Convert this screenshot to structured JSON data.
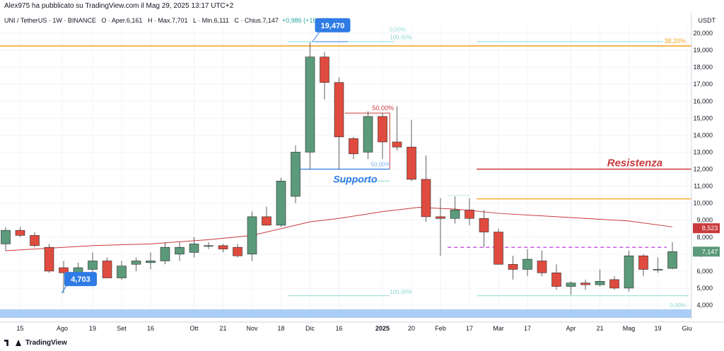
{
  "header": {
    "published_by": "Alex975 ha pubblicato su TradingView.com il Mag 29, 2025 13:17 UTC+2"
  },
  "legend": {
    "symbol": "UNI / TetherUS · 1W · BINANCE",
    "open": "O · Aper.6,161",
    "high": "H · Max.7,701",
    "low": "L · Min.6,111",
    "close": "C · Chius.7,147",
    "change": "+0,986 (+16,00%)"
  },
  "footer": {
    "brand": "TradingView"
  },
  "colors": {
    "up": "#5b9a7a",
    "down": "#e04b3f",
    "ma": "#c9393c",
    "resistance": "#c9393c",
    "fib_orange": "#f5a623",
    "support": "#2f7be5",
    "dashed": "#c44ae0",
    "fib_teal": "#8fd9d3",
    "blue_band": "#9cc4f5"
  },
  "chart_data": {
    "type": "candlestick",
    "y_axis_label": "USDT",
    "ylim": [
      3.3,
      21.0
    ],
    "y_ticks": [
      "4,000",
      "5,000",
      "6,000",
      "7,000",
      "8,000",
      "9,000",
      "10,000",
      "11,000",
      "12,000",
      "13,000",
      "14,000",
      "15,000",
      "16,000",
      "17,000",
      "18,000",
      "19,000",
      "20,000"
    ],
    "y_tick_values": [
      4,
      5,
      6,
      7,
      8,
      9,
      10,
      11,
      12,
      13,
      14,
      15,
      16,
      17,
      18,
      19,
      20
    ],
    "x_ticks": [
      {
        "label": "15",
        "i": 1
      },
      {
        "label": "Ago",
        "i": 3.9
      },
      {
        "label": "19",
        "i": 6
      },
      {
        "label": "Set",
        "i": 8
      },
      {
        "label": "16",
        "i": 10
      },
      {
        "label": "Ott",
        "i": 13
      },
      {
        "label": "21",
        "i": 15
      },
      {
        "label": "Nov",
        "i": 17
      },
      {
        "label": "18",
        "i": 19
      },
      {
        "label": "Dic",
        "i": 21
      },
      {
        "label": "16",
        "i": 23
      },
      {
        "label": "2025",
        "i": 26
      },
      {
        "label": "20",
        "i": 28
      },
      {
        "label": "Feb",
        "i": 30
      },
      {
        "label": "17",
        "i": 32
      },
      {
        "label": "Mar",
        "i": 34
      },
      {
        "label": "17",
        "i": 36
      },
      {
        "label": "Apr",
        "i": 39
      },
      {
        "label": "21",
        "i": 41
      },
      {
        "label": "Mag",
        "i": 43
      },
      {
        "label": "19",
        "i": 45
      },
      {
        "label": "Giu",
        "i": 47
      }
    ],
    "candles": [
      {
        "o": 7.6,
        "h": 8.6,
        "l": 7.2,
        "c": 8.4
      },
      {
        "o": 8.4,
        "h": 8.6,
        "l": 8.0,
        "c": 8.1
      },
      {
        "o": 8.1,
        "h": 8.3,
        "l": 7.4,
        "c": 7.5
      },
      {
        "o": 7.4,
        "h": 7.6,
        "l": 5.9,
        "c": 6.0
      },
      {
        "o": 6.2,
        "h": 6.6,
        "l": 4.7,
        "c": 5.9
      },
      {
        "o": 5.9,
        "h": 6.5,
        "l": 5.6,
        "c": 6.2
      },
      {
        "o": 6.1,
        "h": 7.1,
        "l": 5.8,
        "c": 6.6
      },
      {
        "o": 6.6,
        "h": 6.8,
        "l": 5.6,
        "c": 5.6
      },
      {
        "o": 5.6,
        "h": 6.6,
        "l": 5.5,
        "c": 6.3
      },
      {
        "o": 6.4,
        "h": 6.8,
        "l": 6.0,
        "c": 6.6
      },
      {
        "o": 6.5,
        "h": 7.1,
        "l": 6.1,
        "c": 6.6
      },
      {
        "o": 6.6,
        "h": 7.7,
        "l": 6.4,
        "c": 7.4
      },
      {
        "o": 7.0,
        "h": 7.7,
        "l": 6.6,
        "c": 7.4
      },
      {
        "o": 7.1,
        "h": 8.0,
        "l": 6.8,
        "c": 7.6
      },
      {
        "o": 7.5,
        "h": 7.7,
        "l": 7.3,
        "c": 7.5
      },
      {
        "o": 7.5,
        "h": 7.6,
        "l": 7.1,
        "c": 7.3
      },
      {
        "o": 7.4,
        "h": 7.6,
        "l": 6.8,
        "c": 6.9
      },
      {
        "o": 7.0,
        "h": 9.5,
        "l": 6.6,
        "c": 9.2
      },
      {
        "o": 9.2,
        "h": 9.8,
        "l": 8.7,
        "c": 8.7
      },
      {
        "o": 8.7,
        "h": 11.5,
        "l": 8.6,
        "c": 11.3
      },
      {
        "o": 10.4,
        "h": 13.4,
        "l": 10.0,
        "c": 13.0
      },
      {
        "o": 13.0,
        "h": 19.47,
        "l": 12.0,
        "c": 18.6
      },
      {
        "o": 18.6,
        "h": 18.9,
        "l": 16.1,
        "c": 17.1
      },
      {
        "o": 17.1,
        "h": 17.4,
        "l": 12.0,
        "c": 13.9
      },
      {
        "o": 13.8,
        "h": 13.9,
        "l": 12.6,
        "c": 12.9
      },
      {
        "o": 13.0,
        "h": 15.4,
        "l": 12.6,
        "c": 15.1
      },
      {
        "o": 15.1,
        "h": 15.3,
        "l": 12.6,
        "c": 13.6
      },
      {
        "o": 13.6,
        "h": 15.7,
        "l": 13.1,
        "c": 13.3
      },
      {
        "o": 13.3,
        "h": 14.9,
        "l": 11.3,
        "c": 11.4
      },
      {
        "o": 11.4,
        "h": 12.8,
        "l": 8.9,
        "c": 9.2
      },
      {
        "o": 9.2,
        "h": 10.3,
        "l": 6.9,
        "c": 9.1
      },
      {
        "o": 9.1,
        "h": 10.4,
        "l": 8.8,
        "c": 9.6
      },
      {
        "o": 9.6,
        "h": 10.3,
        "l": 8.7,
        "c": 9.1
      },
      {
        "o": 9.1,
        "h": 9.6,
        "l": 7.4,
        "c": 8.3
      },
      {
        "o": 8.3,
        "h": 8.5,
        "l": 6.4,
        "c": 6.4
      },
      {
        "o": 6.4,
        "h": 6.9,
        "l": 5.5,
        "c": 6.1
      },
      {
        "o": 6.1,
        "h": 7.3,
        "l": 5.7,
        "c": 6.7
      },
      {
        "o": 6.6,
        "h": 7.2,
        "l": 5.7,
        "c": 5.9
      },
      {
        "o": 5.9,
        "h": 6.4,
        "l": 4.9,
        "c": 5.1
      },
      {
        "o": 5.1,
        "h": 5.4,
        "l": 4.6,
        "c": 5.3
      },
      {
        "o": 5.3,
        "h": 5.5,
        "l": 4.9,
        "c": 5.2
      },
      {
        "o": 5.2,
        "h": 6.1,
        "l": 5.1,
        "c": 5.4
      },
      {
        "o": 5.5,
        "h": 5.7,
        "l": 4.9,
        "c": 5.0
      },
      {
        "o": 5.0,
        "h": 7.2,
        "l": 4.8,
        "c": 6.9
      },
      {
        "o": 6.9,
        "h": 7.0,
        "l": 5.7,
        "c": 6.1
      },
      {
        "o": 6.1,
        "h": 6.8,
        "l": 5.9,
        "c": 6.1
      },
      {
        "o": 6.161,
        "h": 7.701,
        "l": 6.111,
        "c": 7.147
      }
    ],
    "ma_series": [
      {
        "i": 0,
        "v": 7.2
      },
      {
        "i": 6,
        "v": 7.5
      },
      {
        "i": 10,
        "v": 7.6
      },
      {
        "i": 14,
        "v": 7.85
      },
      {
        "i": 17,
        "v": 8.1
      },
      {
        "i": 19,
        "v": 8.5
      },
      {
        "i": 21,
        "v": 8.9
      },
      {
        "i": 23,
        "v": 9.1
      },
      {
        "i": 26,
        "v": 9.5
      },
      {
        "i": 28.5,
        "v": 9.75
      },
      {
        "i": 31,
        "v": 9.65
      },
      {
        "i": 34,
        "v": 9.4
      },
      {
        "i": 37,
        "v": 9.25
      },
      {
        "i": 40,
        "v": 9.1
      },
      {
        "i": 43,
        "v": 8.95
      },
      {
        "i": 46,
        "v": 8.6
      }
    ],
    "current_price": "7,147",
    "ma_value": "8,523",
    "annotations": {
      "high_label": "19,470",
      "low_label": "4,703",
      "resistance_label": "Resistenza",
      "support_label": "Supporto",
      "fib_38": "38,20%",
      "fib_50": "50,00%",
      "fib_0_top": "0,00%",
      "fib_100_top": "100,00%",
      "fib_50_blue": "50,00%",
      "fib_100_bottom": "100,00%",
      "fib_0_bottom": "0,00%"
    },
    "levels": {
      "fib_38": 19.25,
      "resistance": 12.0,
      "orange_low": 10.25,
      "support": 12.0,
      "dashed": 7.4
    }
  }
}
